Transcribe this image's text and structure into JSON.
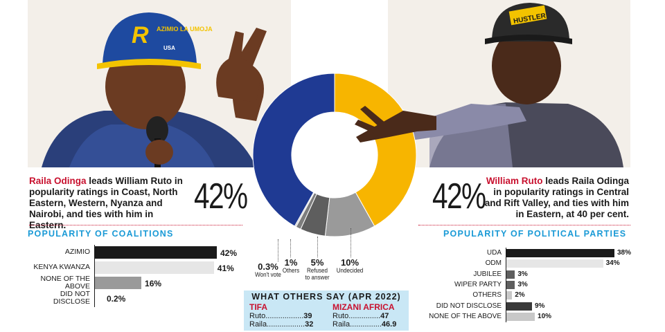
{
  "header_pct_left": "42%",
  "header_pct_right": "42%",
  "left_blurb": {
    "name": "Raila Odinga",
    "text": " leads William Ruto in popularity ratings in Coast, North Eastern, Western, Nyanza and Nairobi, and ties with him in Eastern."
  },
  "right_blurb": {
    "name": "William Ruto",
    "text": " leads Raila Odinga in popularity ratings in  Central and Rift Valley, and ties with him in Eastern, at 40 per cent."
  },
  "photos": {
    "left_cap_text": "AZIMIO LA UMOJA",
    "left_cap_sub": "USA",
    "right_cap_text": "HUSTLER"
  },
  "colors": {
    "raila_blue": "#1f3a93",
    "ruto_yellow": "#f7b500",
    "dark_gray": "#5e5e5e",
    "mid_gray": "#9a9a9a",
    "light_gray": "#c8c8c8",
    "accent_blue": "#1a9ad6",
    "accent_red": "#c8102e"
  },
  "chart_data": [
    {
      "type": "pie",
      "variant": "donut",
      "slices": [
        {
          "name": "Raila",
          "value": 42,
          "label": "42%",
          "color": "#1f3a93"
        },
        {
          "name": "Ruto",
          "value": 42,
          "label": "42%",
          "color": "#f7b500"
        },
        {
          "name": "Undecided",
          "value": 10,
          "label": "10%",
          "color": "#9a9a9a"
        },
        {
          "name": "Refused to answer",
          "value": 5,
          "label": "5%",
          "color": "#5e5e5e"
        },
        {
          "name": "Others",
          "value": 1,
          "label": "1%",
          "color": "#7d7d7d"
        },
        {
          "name": "Won't vote",
          "value": 0.3,
          "label": "0.3%",
          "color": "#c8c8c8"
        }
      ],
      "slice_labels": [
        {
          "pct": "0.3%",
          "name": "Won't vote"
        },
        {
          "pct": "1%",
          "name": "Others"
        },
        {
          "pct": "5%",
          "name": "Refused to answer"
        },
        {
          "pct": "10%",
          "name": "Undecided"
        }
      ]
    },
    {
      "type": "bar",
      "orientation": "horizontal",
      "title": "POPULARITY OF COALITIONS",
      "categories": [
        "AZIMIO",
        "KENYA KWANZA",
        "NONE OF THE ABOVE",
        "DID NOT DISCLOSE"
      ],
      "values": [
        42,
        41,
        16,
        0.2
      ],
      "value_labels": [
        "42%",
        "41%",
        "16%",
        "0.2%"
      ],
      "colors": [
        "#1a1a1a",
        "#e6e6e6",
        "#9a9a9a",
        "#ffffff"
      ],
      "xlim": [
        0,
        42
      ]
    },
    {
      "type": "bar",
      "orientation": "horizontal",
      "title": "POPULARITY OF POLITICAL PARTIES",
      "categories": [
        "UDA",
        "ODM",
        "JUBILEE",
        "WIPER PARTY",
        "OTHERS",
        "DID NOT DISCLOSE",
        "NONE OF THE ABOVE"
      ],
      "values": [
        38,
        34,
        3,
        3,
        2,
        9,
        10
      ],
      "value_labels": [
        "38%",
        "34%",
        "3%",
        "3%",
        "2%",
        "9%",
        "10%"
      ],
      "colors": [
        "#1a1a1a",
        "#e6e6e6",
        "#5e5e5e",
        "#5e5e5e",
        "#c8c8c8",
        "#3a3a3a",
        "#c8c8c8"
      ],
      "xlim": [
        0,
        38
      ]
    },
    {
      "type": "table",
      "title": "WHAT OTHERS SAY (APR 2022)",
      "pollsters": [
        {
          "name": "TIFA",
          "rows": [
            {
              "candidate": "Ruto",
              "leader": "..................",
              "value": "39"
            },
            {
              "candidate": "Raila",
              "leader": "..................",
              "value": "32"
            }
          ]
        },
        {
          "name": "MIZANI AFRICA",
          "rows": [
            {
              "candidate": "Ruto",
              "leader": "...............",
              "value": "47"
            },
            {
              "candidate": "Raila",
              "leader": "...............",
              "value": "46.9"
            }
          ]
        }
      ]
    }
  ]
}
